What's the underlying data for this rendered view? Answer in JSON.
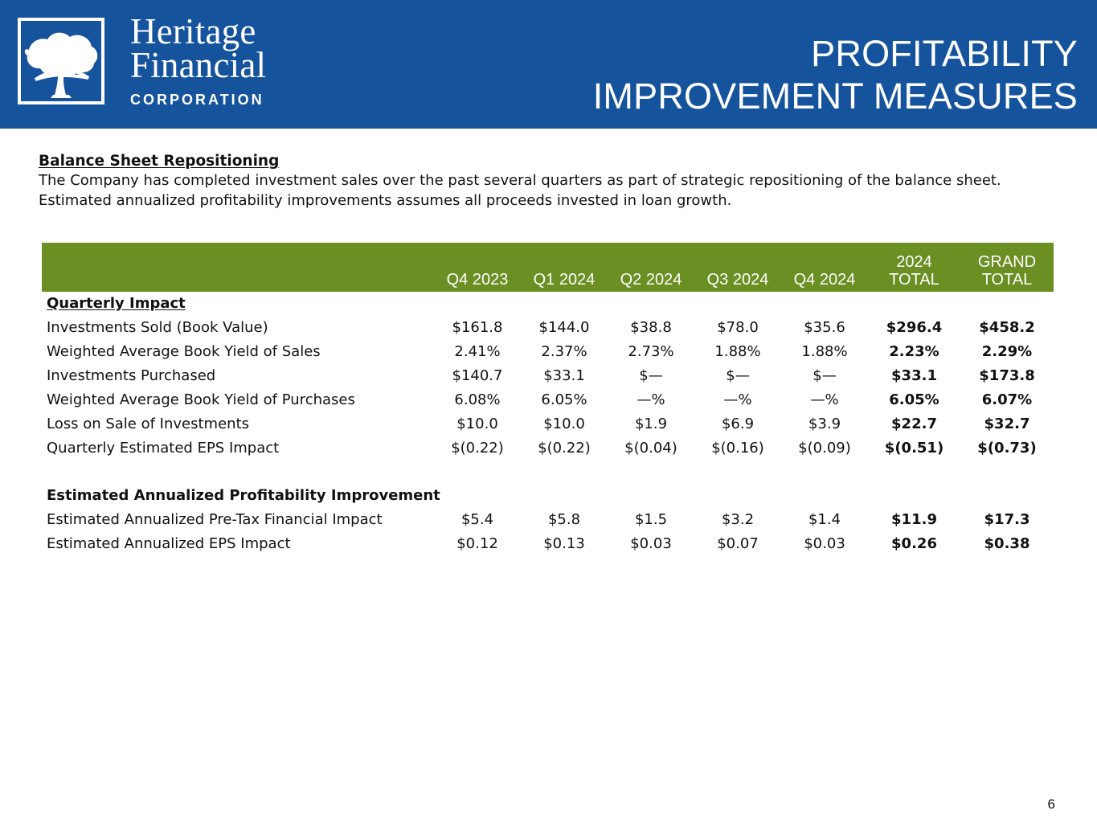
{
  "header": {
    "logo": {
      "name_line_1": "Heritage",
      "name_line_2": "Financial",
      "subtitle": "CORPORATION",
      "icon": "tree-logo-icon"
    },
    "title_line_1": "PROFITABILITY",
    "title_line_2": "IMPROVEMENT MEASURES"
  },
  "intro": {
    "section_title": "Balance Sheet Repositioning",
    "line_1": "The Company has completed investment sales over the past several quarters as part of strategic repositioning of the balance sheet.",
    "line_2": "Estimated annualized profitability improvements assumes all proceeds invested in loan growth."
  },
  "table": {
    "columns": [
      {
        "line_1": "",
        "line_2": ""
      },
      {
        "line_1": "",
        "line_2": "Q4 2023"
      },
      {
        "line_1": "",
        "line_2": "Q1 2024"
      },
      {
        "line_1": "",
        "line_2": "Q2 2024"
      },
      {
        "line_1": "",
        "line_2": "Q3 2024"
      },
      {
        "line_1": "",
        "line_2": "Q4 2024"
      },
      {
        "line_1": "2024",
        "line_2": "TOTAL"
      },
      {
        "line_1": "GRAND",
        "line_2": "TOTAL"
      }
    ],
    "quarterly_heading": "Quarterly Impact",
    "quarterly_rows": [
      {
        "label": "Investments Sold (Book Value)",
        "values": [
          "$161.8",
          "$144.0",
          "$38.8",
          "$78.0",
          "$35.6",
          "$296.4",
          "$458.2"
        ]
      },
      {
        "label": "Weighted Average Book Yield of Sales",
        "values": [
          "2.41%",
          "2.37%",
          "2.73%",
          "1.88%",
          "1.88%",
          "2.23%",
          "2.29%"
        ]
      },
      {
        "label": "Investments Purchased",
        "values": [
          "$140.7",
          "$33.1",
          "$—",
          "$—",
          "$—",
          "$33.1",
          "$173.8"
        ]
      },
      {
        "label": "Weighted Average Book Yield of Purchases",
        "values": [
          "6.08%",
          "6.05%",
          "—%",
          "—%",
          "—%",
          "6.05%",
          "6.07%"
        ]
      },
      {
        "label": "Loss on Sale of Investments",
        "values": [
          "$10.0",
          "$10.0",
          "$1.9",
          "$6.9",
          "$3.9",
          "$22.7",
          "$32.7"
        ]
      },
      {
        "label": "Quarterly Estimated EPS Impact",
        "values": [
          "$(0.22)",
          "$(0.22)",
          "$(0.04)",
          "$(0.16)",
          "$(0.09)",
          "$(0.51)",
          "$(0.73)"
        ]
      }
    ],
    "annualized_heading": "Estimated Annualized Profitability Improvement",
    "annualized_rows": [
      {
        "label": "Estimated Annualized Pre-Tax Financial Impact",
        "values": [
          "$5.4",
          "$5.8",
          "$1.5",
          "$3.2",
          "$1.4",
          "$11.9",
          "$17.3"
        ]
      },
      {
        "label": "Estimated Annualized EPS Impact",
        "values": [
          "$0.12",
          "$0.13",
          "$0.03",
          "$0.07",
          "$0.03",
          "$0.26",
          "$0.38"
        ]
      }
    ]
  },
  "footer": {
    "page_number": "6"
  },
  "colors": {
    "header_blue": "#16539d",
    "table_header_green": "#6b8f23",
    "text": "#111111",
    "white": "#ffffff"
  }
}
